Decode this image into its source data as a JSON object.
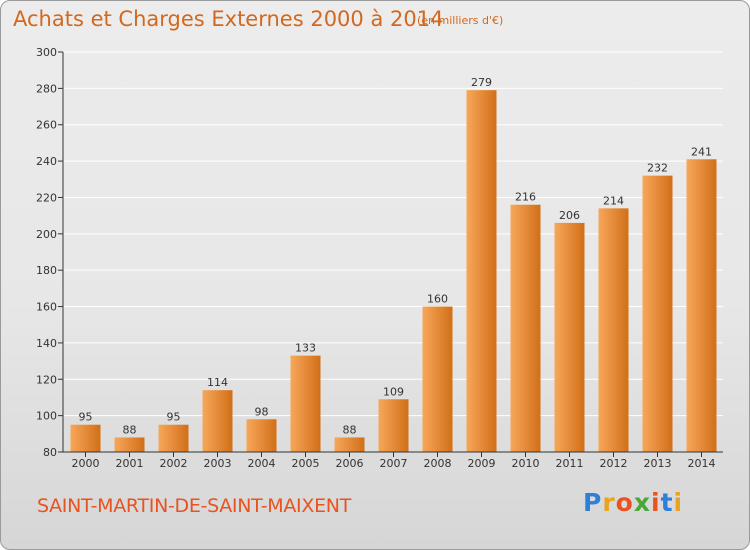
{
  "title": "Achats et Charges Externes 2000 à 2014",
  "unit": "(en milliers d'€)",
  "commune": "SAINT-MARTIN-DE-SAINT-MAIXENT",
  "logo": {
    "letters": [
      "P",
      "r",
      "o",
      "x",
      "i",
      "t",
      "i"
    ],
    "colors": [
      "#2f7fd8",
      "#e8a31f",
      "#e8531f",
      "#4aa836",
      "#e8531f",
      "#2f7fd8",
      "#e8a31f"
    ]
  },
  "colors": {
    "bar_light": "#f7a75a",
    "bar_dark": "#d26f18",
    "axis": "#333333",
    "grid": "#ffffff",
    "text": "#333333"
  },
  "chart_data": {
    "type": "bar",
    "categories": [
      "2000",
      "2001",
      "2002",
      "2003",
      "2004",
      "2005",
      "2006",
      "2007",
      "2008",
      "2009",
      "2010",
      "2011",
      "2012",
      "2013",
      "2014"
    ],
    "values": [
      95,
      88,
      95,
      114,
      98,
      133,
      88,
      109,
      160,
      279,
      216,
      206,
      214,
      232,
      241
    ],
    "ylim": [
      80,
      300
    ],
    "yticks": [
      80,
      100,
      120,
      140,
      160,
      180,
      200,
      220,
      240,
      260,
      280,
      300
    ],
    "grid": true,
    "data_labels": true
  }
}
